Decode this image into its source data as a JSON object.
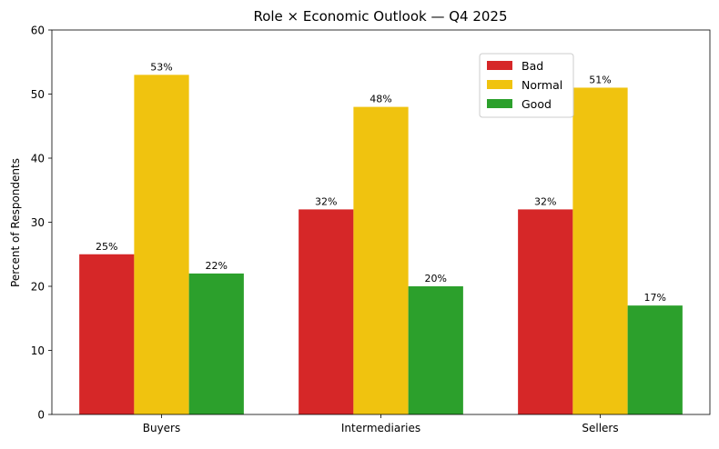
{
  "chart_data": {
    "type": "bar",
    "title": "Role × Economic Outlook — Q4 2025",
    "xlabel": "",
    "ylabel": "Percent of Respondents",
    "ylim": [
      0,
      60
    ],
    "yticks": [
      0,
      10,
      20,
      30,
      40,
      50,
      60
    ],
    "categories": [
      "Buyers",
      "Intermediaries",
      "Sellers"
    ],
    "series": [
      {
        "name": "Bad",
        "color": "#d62728",
        "values": [
          25,
          32,
          32
        ],
        "labels": [
          "25%",
          "32%",
          "32%"
        ]
      },
      {
        "name": "Normal",
        "color": "#f0c30f",
        "values": [
          53,
          48,
          51
        ],
        "labels": [
          "53%",
          "48%",
          "51%"
        ]
      },
      {
        "name": "Good",
        "color": "#2ca02c",
        "values": [
          22,
          20,
          17
        ],
        "labels": [
          "22%",
          "20%",
          "17%"
        ]
      }
    ],
    "legend": "upper-right-inside",
    "grid": false
  }
}
